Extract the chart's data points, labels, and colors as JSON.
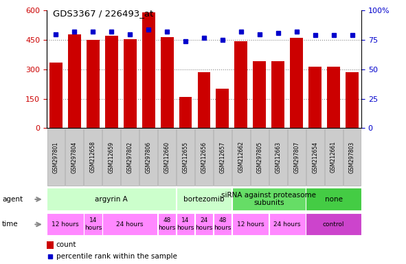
{
  "title": "GDS3367 / 226493_at",
  "samples": [
    "GSM297801",
    "GSM297804",
    "GSM212658",
    "GSM212659",
    "GSM297802",
    "GSM297806",
    "GSM212660",
    "GSM212655",
    "GSM212656",
    "GSM212657",
    "GSM212662",
    "GSM297805",
    "GSM212663",
    "GSM297807",
    "GSM212654",
    "GSM212661",
    "GSM297803"
  ],
  "counts": [
    335,
    480,
    450,
    470,
    455,
    590,
    465,
    160,
    285,
    200,
    445,
    340,
    340,
    460,
    315,
    315,
    285
  ],
  "percentiles": [
    80,
    82,
    82,
    82,
    80,
    84,
    82,
    74,
    77,
    75,
    82,
    80,
    81,
    82,
    79,
    79,
    79
  ],
  "bar_color": "#cc0000",
  "dot_color": "#0000cc",
  "ylim_left": [
    0,
    600
  ],
  "ylim_right": [
    0,
    100
  ],
  "yticks_left": [
    0,
    150,
    300,
    450,
    600
  ],
  "yticks_right": [
    0,
    25,
    50,
    75,
    100
  ],
  "agent_groups": [
    {
      "label": "argyrin A",
      "start": 0,
      "end": 7,
      "color": "#ccffcc"
    },
    {
      "label": "bortezomib",
      "start": 7,
      "end": 10,
      "color": "#ccffcc"
    },
    {
      "label": "siRNA against proteasome\nsubunits",
      "start": 10,
      "end": 14,
      "color": "#66dd66"
    },
    {
      "label": "none",
      "start": 14,
      "end": 17,
      "color": "#44cc44"
    }
  ],
  "time_groups": [
    {
      "label": "12 hours",
      "start": 0,
      "end": 2,
      "color": "#ff88ff"
    },
    {
      "label": "14\nhours",
      "start": 2,
      "end": 3,
      "color": "#ff88ff"
    },
    {
      "label": "24 hours",
      "start": 3,
      "end": 6,
      "color": "#ff88ff"
    },
    {
      "label": "48\nhours",
      "start": 6,
      "end": 7,
      "color": "#ff88ff"
    },
    {
      "label": "14\nhours",
      "start": 7,
      "end": 8,
      "color": "#ff88ff"
    },
    {
      "label": "24\nhours",
      "start": 8,
      "end": 9,
      "color": "#ff88ff"
    },
    {
      "label": "48\nhours",
      "start": 9,
      "end": 10,
      "color": "#ff88ff"
    },
    {
      "label": "12 hours",
      "start": 10,
      "end": 12,
      "color": "#ff88ff"
    },
    {
      "label": "24 hours",
      "start": 12,
      "end": 14,
      "color": "#ff88ff"
    },
    {
      "label": "control",
      "start": 14,
      "end": 17,
      "color": "#cc44cc"
    }
  ],
  "tick_label_color_left": "#cc0000",
  "tick_label_color_right": "#0000cc",
  "grid_color": "#888888",
  "sample_box_color": "#cccccc",
  "sample_box_edge": "#aaaaaa"
}
